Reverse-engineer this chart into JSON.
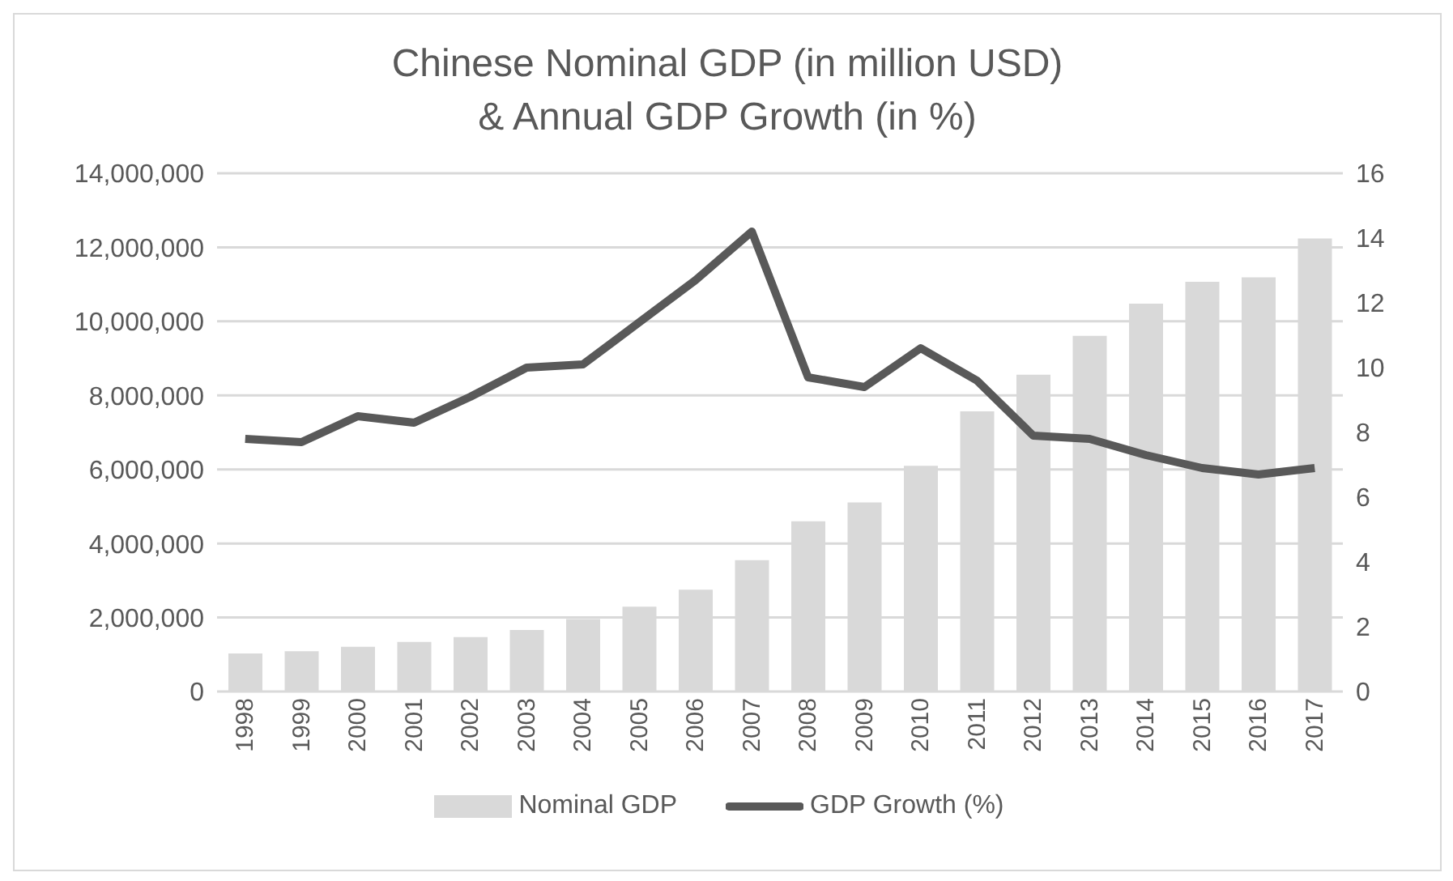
{
  "chart_data": {
    "type": "bar",
    "title": "Chinese Nominal GDP (in million USD)\n& Annual GDP Growth (in %)",
    "categories": [
      "1998",
      "1999",
      "2000",
      "2001",
      "2002",
      "2003",
      "2004",
      "2005",
      "2006",
      "2007",
      "2008",
      "2009",
      "2010",
      "2011",
      "2012",
      "2013",
      "2014",
      "2015",
      "2016",
      "2017"
    ],
    "series": [
      {
        "name": "Nominal GDP",
        "color": "#d9d9d9",
        "values": [
          1030000,
          1090000,
          1210000,
          1340000,
          1470000,
          1660000,
          1960000,
          2290000,
          2750000,
          3550000,
          4600000,
          5110000,
          6100000,
          7570000,
          8560000,
          9610000,
          10480000,
          11070000,
          11190000,
          12240000
        ]
      },
      {
        "name": "GDP Growth (%)",
        "type": "line",
        "axis": "y2",
        "color": "#595959",
        "values": [
          7.8,
          7.7,
          8.5,
          8.3,
          9.1,
          10.0,
          10.1,
          11.4,
          12.7,
          14.2,
          9.7,
          9.4,
          10.6,
          9.6,
          7.9,
          7.8,
          7.3,
          6.9,
          6.7,
          6.9
        ]
      }
    ],
    "ylim": [
      0,
      14000000
    ],
    "yticks": [
      0,
      {
        "value": 2000000,
        "label": "2,000,000"
      },
      {
        "value": 4000000,
        "label": "4,000,000"
      },
      {
        "value": 6000000,
        "label": "6,000,000"
      },
      {
        "value": 8000000,
        "label": "8,000,000"
      },
      {
        "value": 10000000,
        "label": "10,000,000"
      },
      {
        "value": 12000000,
        "label": "12,000,000"
      },
      {
        "value": 14000000,
        "label": "14,000,000"
      }
    ],
    "y2lim": [
      0,
      16
    ],
    "y2ticks": [
      0,
      2,
      4,
      6,
      8,
      10,
      12,
      14,
      16
    ],
    "grid": "y",
    "legend": "bottom",
    "marker": "none"
  }
}
